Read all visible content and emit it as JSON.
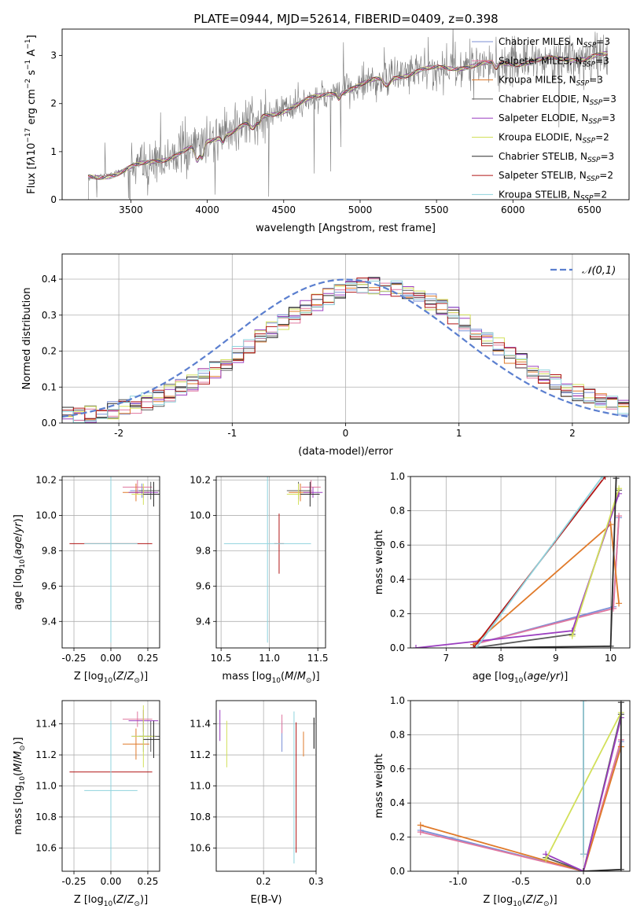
{
  "title": "PLATE=0944, MJD=52614, FIBERID=0409, z=0.398",
  "colors": {
    "Chabrier MILES": "#7b8fd6",
    "Salpeter MILES": "#e0779f",
    "Kroupa MILES": "#e07a2a",
    "Chabrier ELODIE": "#5a5a5a",
    "Salpeter ELODIE": "#9b3ec0",
    "Kroupa ELODIE": "#d2e05a",
    "Chabrier STELIB": "#2b2b2b",
    "Salpeter STELIB": "#b11616",
    "Kroupa STELIB": "#8fd3dd"
  },
  "legend": [
    {
      "name": "Chabrier MILES",
      "label": "Chabrier MILES, N",
      "n": "=3"
    },
    {
      "name": "Salpeter MILES",
      "label": "Salpeter MILES, N",
      "n": "=3"
    },
    {
      "name": "Kroupa MILES",
      "label": "Kroupa MILES, N",
      "n": "=3"
    },
    {
      "name": "Chabrier ELODIE",
      "label": "Chabrier ELODIE, N",
      "n": "=3"
    },
    {
      "name": "Salpeter ELODIE",
      "label": "Salpeter ELODIE, N",
      "n": "=3"
    },
    {
      "name": "Kroupa ELODIE",
      "label": "Kroupa ELODIE, N",
      "n": "=2"
    },
    {
      "name": "Chabrier STELIB",
      "label": "Chabrier STELIB, N",
      "n": "=3"
    },
    {
      "name": "Salpeter STELIB",
      "label": "Salpeter STELIB, N",
      "n": "=2"
    },
    {
      "name": "Kroupa STELIB",
      "label": "Kroupa STELIB, N",
      "n": "=2"
    }
  ],
  "legend_subscript": "SSP",
  "chart_data": [
    {
      "id": "spectrum",
      "type": "line",
      "xlabel": "wavelength [Angstrom, rest frame]",
      "ylabel": "Flux [f10 erg cm s A]",
      "xlim": [
        3050,
        6760
      ],
      "ylim": [
        0,
        3.55
      ],
      "xticks": [
        3500,
        4000,
        4500,
        5000,
        5500,
        6000,
        6500
      ],
      "yticks": [
        0,
        1,
        2,
        3
      ],
      "x_start": 3220,
      "x_end": 6620,
      "continuum": [
        [
          3220,
          0.45
        ],
        [
          3400,
          0.55
        ],
        [
          3600,
          0.75
        ],
        [
          3800,
          0.95
        ],
        [
          4000,
          1.2
        ],
        [
          4200,
          1.5
        ],
        [
          4400,
          1.75
        ],
        [
          4600,
          2.0
        ],
        [
          4800,
          2.2
        ],
        [
          5000,
          2.38
        ],
        [
          5200,
          2.55
        ],
        [
          5400,
          2.68
        ],
        [
          5600,
          2.76
        ],
        [
          6000,
          2.85
        ],
        [
          6300,
          2.92
        ],
        [
          6620,
          3.0
        ]
      ],
      "grid": false,
      "legend_position": "upper right"
    },
    {
      "id": "residual_histogram",
      "type": "line",
      "xlabel": "(data-model)/error",
      "ylabel": "Normed distribution",
      "xlim": [
        -2.5,
        2.5
      ],
      "ylim": [
        0,
        0.47
      ],
      "xticks": [
        -2,
        -1,
        0,
        1,
        2
      ],
      "yticks": [
        0,
        0.1,
        0.2,
        0.3,
        0.4
      ],
      "bin_width": 0.1,
      "series_name": "N(0,1)",
      "grid": true,
      "legend_position": "upper right"
    },
    {
      "id": "age_vs_Z",
      "type": "scatter",
      "xlabel": "Z [log10(Z/Z⊙)]",
      "ylabel": "age [log10(age/yr)]",
      "xlim": [
        -0.33,
        0.33
      ],
      "ylim": [
        9.25,
        10.22
      ],
      "xticks": [
        -0.25,
        0,
        0.25
      ],
      "yticks": [
        9.4,
        9.6,
        9.8,
        10.0,
        10.2
      ],
      "points": [
        {
          "model": "Chabrier MILES",
          "x": 0.21,
          "y": 10.14,
          "xerr": 0.08,
          "yerr": 0.04
        },
        {
          "model": "Salpeter MILES",
          "x": 0.18,
          "y": 10.16,
          "xerr": 0.1,
          "yerr": 0.04
        },
        {
          "model": "Kroupa MILES",
          "x": 0.17,
          "y": 10.13,
          "xerr": 0.09,
          "yerr": 0.05
        },
        {
          "model": "Chabrier ELODIE",
          "x": 0.27,
          "y": 10.14,
          "xerr": 0.08,
          "yerr": 0.05
        },
        {
          "model": "Salpeter ELODIE",
          "x": 0.22,
          "y": 10.13,
          "xerr": 0.1,
          "yerr": 0.03
        },
        {
          "model": "Kroupa ELODIE",
          "x": 0.22,
          "y": 10.12,
          "xerr": 0.08,
          "yerr": 0.06
        },
        {
          "model": "Chabrier STELIB",
          "x": 0.29,
          "y": 10.12,
          "xerr": 0.07,
          "yerr": 0.07
        },
        {
          "model": "Salpeter STELIB",
          "x": 0.0,
          "y": 9.84,
          "xerr": 0.28,
          "yerr": 0.17
        },
        {
          "model": "Kroupa STELIB",
          "x": 0.0,
          "y": 9.84,
          "xerr": 0.18,
          "yerr": 0.56
        }
      ]
    },
    {
      "id": "age_vs_mass",
      "type": "scatter",
      "xlabel": "mass [log10(M/M⊙)]",
      "ylabel": "",
      "xlim": [
        10.45,
        11.58
      ],
      "ylim": [
        9.25,
        10.22
      ],
      "xticks": [
        10.5,
        11.0,
        11.5
      ],
      "yticks": [
        9.4,
        9.6,
        9.8,
        10.0,
        10.2
      ],
      "points": [
        {
          "model": "Chabrier MILES",
          "x": 11.32,
          "y": 10.14,
          "xerr": 0.12,
          "yerr": 0.04
        },
        {
          "model": "Salpeter MILES",
          "x": 11.43,
          "y": 10.16,
          "xerr": 0.1,
          "yerr": 0.04
        },
        {
          "model": "Kroupa MILES",
          "x": 11.32,
          "y": 10.13,
          "xerr": 0.12,
          "yerr": 0.05
        },
        {
          "model": "Chabrier ELODIE",
          "x": 11.3,
          "y": 10.14,
          "xerr": 0.12,
          "yerr": 0.05
        },
        {
          "model": "Salpeter ELODIE",
          "x": 11.45,
          "y": 10.13,
          "xerr": 0.1,
          "yerr": 0.03
        },
        {
          "model": "Kroupa ELODIE",
          "x": 11.3,
          "y": 10.12,
          "xerr": 0.12,
          "yerr": 0.06
        },
        {
          "model": "Chabrier STELIB",
          "x": 11.42,
          "y": 10.12,
          "xerr": 0.1,
          "yerr": 0.07
        },
        {
          "model": "Salpeter STELIB",
          "x": 11.1,
          "y": 9.84,
          "xerr": 0.05,
          "yerr": 0.17
        },
        {
          "model": "Kroupa STELIB",
          "x": 10.98,
          "y": 9.84,
          "xerr": 0.45,
          "yerr": 0.56
        }
      ]
    },
    {
      "id": "massweight_vs_age",
      "type": "line",
      "xlabel": "age [log10(age/yr)]",
      "ylabel": "mass weight",
      "xlim": [
        6.35,
        10.35
      ],
      "ylim": [
        0,
        1.0
      ],
      "xticks": [
        7,
        8,
        9,
        10
      ],
      "yticks": [
        0,
        0.2,
        0.4,
        0.6,
        0.8,
        1.0
      ],
      "series": [
        {
          "model": "Chabrier MILES",
          "x": [
            7.5,
            10.05,
            10.15
          ],
          "y": [
            0.02,
            0.24,
            0.76
          ]
        },
        {
          "model": "Salpeter MILES",
          "x": [
            7.5,
            10.05,
            10.15
          ],
          "y": [
            0.02,
            0.23,
            0.77
          ]
        },
        {
          "model": "Kroupa MILES",
          "x": [
            7.5,
            10.0,
            10.15
          ],
          "y": [
            0.02,
            0.72,
            0.26
          ]
        },
        {
          "model": "Chabrier ELODIE",
          "x": [
            7.5,
            9.3,
            10.15
          ],
          "y": [
            0.0,
            0.08,
            0.92
          ]
        },
        {
          "model": "Salpeter ELODIE",
          "x": [
            6.45,
            9.3,
            10.15
          ],
          "y": [
            0.0,
            0.1,
            0.9
          ]
        },
        {
          "model": "Kroupa ELODIE",
          "x": [
            9.3,
            10.15
          ],
          "y": [
            0.07,
            0.93
          ]
        },
        {
          "model": "Chabrier STELIB",
          "x": [
            7.5,
            10.0,
            10.1
          ],
          "y": [
            0.0,
            0.01,
            0.99
          ]
        },
        {
          "model": "Salpeter STELIB",
          "x": [
            7.5,
            9.9
          ],
          "y": [
            0.0,
            1.0
          ]
        },
        {
          "model": "Kroupa STELIB",
          "x": [
            7.55,
            9.85
          ],
          "y": [
            0.0,
            1.0
          ]
        }
      ]
    },
    {
      "id": "mass_vs_Z",
      "type": "scatter",
      "xlabel": "Z [log10(Z/Z⊙)]",
      "ylabel": "mass [log10(M/M⊙)]",
      "xlim": [
        -0.33,
        0.33
      ],
      "ylim": [
        10.45,
        11.55
      ],
      "xticks": [
        -0.25,
        0,
        0.25
      ],
      "yticks": [
        10.6,
        10.8,
        11.0,
        11.2,
        11.4
      ],
      "points": [
        {
          "model": "Chabrier MILES",
          "x": 0.22,
          "y": 11.32,
          "xerr": 0.08,
          "yerr": 0.1
        },
        {
          "model": "Salpeter MILES",
          "x": 0.18,
          "y": 11.43,
          "xerr": 0.1,
          "yerr": 0.05
        },
        {
          "model": "Kroupa MILES",
          "x": 0.17,
          "y": 11.27,
          "xerr": 0.09,
          "yerr": 0.1
        },
        {
          "model": "Chabrier ELODIE",
          "x": 0.27,
          "y": 11.32,
          "xerr": 0.08,
          "yerr": 0.1
        },
        {
          "model": "Salpeter ELODIE",
          "x": 0.22,
          "y": 11.42,
          "xerr": 0.1,
          "yerr": 0.07
        },
        {
          "model": "Kroupa ELODIE",
          "x": 0.22,
          "y": 11.32,
          "xerr": 0.08,
          "yerr": 0.2
        },
        {
          "model": "Chabrier STELIB",
          "x": 0.29,
          "y": 11.3,
          "xerr": 0.07,
          "yerr": 0.12
        },
        {
          "model": "Salpeter STELIB",
          "x": 0.0,
          "y": 11.09,
          "xerr": 0.28,
          "yerr": 0.03
        },
        {
          "model": "Kroupa STELIB",
          "x": 0.0,
          "y": 10.97,
          "xerr": 0.18,
          "yerr": 0.45
        }
      ]
    },
    {
      "id": "mass_vs_ebv",
      "type": "scatter",
      "xlabel": "E(B-V)",
      "ylabel": "",
      "xlim": [
        0.11,
        0.3
      ],
      "ylim": [
        10.45,
        11.55
      ],
      "xticks": [
        0.2,
        0.3
      ],
      "yticks": [
        10.6,
        10.8,
        11.0,
        11.2,
        11.4
      ],
      "points": [
        {
          "model": "Chabrier MILES",
          "x": 0.235,
          "y": 11.32,
          "yerr": 0.1
        },
        {
          "model": "Salpeter MILES",
          "x": 0.235,
          "y": 11.4,
          "yerr": 0.06
        },
        {
          "model": "Kroupa MILES",
          "x": 0.276,
          "y": 11.27,
          "yerr": 0.08
        },
        {
          "model": "Chabrier ELODIE",
          "x": 0.296,
          "y": 11.34,
          "yerr": 0.1
        },
        {
          "model": "Salpeter ELODIE",
          "x": 0.117,
          "y": 11.39,
          "yerr": 0.1
        },
        {
          "model": "Kroupa ELODIE",
          "x": 0.13,
          "y": 11.27,
          "yerr": 0.15
        },
        {
          "model": "Chabrier STELIB",
          "x": 0.296,
          "y": 11.34,
          "yerr": 0.1
        },
        {
          "model": "Salpeter STELIB",
          "x": 0.262,
          "y": 10.99,
          "yerr": 0.42
        },
        {
          "model": "Kroupa STELIB",
          "x": 0.258,
          "y": 10.99,
          "yerr": 0.49
        }
      ]
    },
    {
      "id": "massweight_vs_Z",
      "type": "line",
      "xlabel": "Z [log10(Z/Z⊙)]",
      "ylabel": "mass weight",
      "xlim": [
        -1.38,
        0.37
      ],
      "ylim": [
        0,
        1.0
      ],
      "xticks": [
        -1.0,
        -0.5,
        0.0
      ],
      "yticks": [
        0,
        0.2,
        0.4,
        0.6,
        0.8,
        1.0
      ],
      "series": [
        {
          "model": "Chabrier MILES",
          "x": [
            -1.3,
            0.0,
            0.3
          ],
          "y": [
            0.24,
            0.0,
            0.76
          ]
        },
        {
          "model": "Salpeter MILES",
          "x": [
            -1.3,
            0.0,
            0.3
          ],
          "y": [
            0.23,
            0.0,
            0.77
          ]
        },
        {
          "model": "Kroupa MILES",
          "x": [
            -1.3,
            0.0,
            0.3
          ],
          "y": [
            0.27,
            0.0,
            0.73
          ]
        },
        {
          "model": "Chabrier ELODIE",
          "x": [
            -0.3,
            0.0,
            0.3
          ],
          "y": [
            0.08,
            0.0,
            0.92
          ]
        },
        {
          "model": "Salpeter ELODIE",
          "x": [
            -0.3,
            0.0,
            0.3
          ],
          "y": [
            0.1,
            0.0,
            0.9
          ]
        },
        {
          "model": "Kroupa ELODIE",
          "x": [
            -0.3,
            0.3
          ],
          "y": [
            0.07,
            0.93
          ]
        },
        {
          "model": "Chabrier STELIB",
          "x": [
            0.0,
            0.3,
            0.3
          ],
          "y": [
            0.0,
            0.01,
            0.99
          ]
        },
        {
          "model": "Salpeter STELIB",
          "x": [
            0.0,
            0.0
          ],
          "y": [
            0.1,
            1.0
          ]
        },
        {
          "model": "Kroupa STELIB",
          "x": [
            0.0,
            0.0
          ],
          "y": [
            0.1,
            1.0
          ]
        }
      ]
    }
  ]
}
